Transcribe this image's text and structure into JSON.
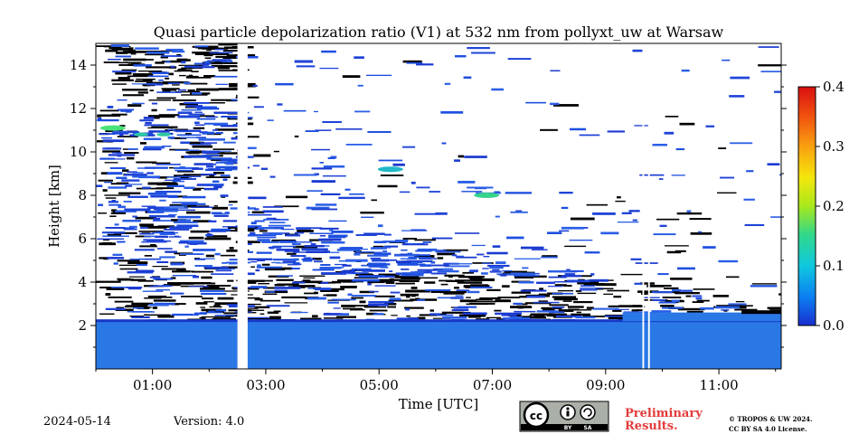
{
  "chart_data": {
    "type": "heatmap",
    "title": "Quasi particle depolarization ratio (V1) at 532 nm from pollyxt_uw at Warsaw",
    "xlabel": "Time [UTC]",
    "ylabel": "Height [km]",
    "x_range_hours": [
      0,
      12.1
    ],
    "ylim": [
      0,
      15
    ],
    "x_ticks": [
      {
        "hour": 1,
        "label": "01:00"
      },
      {
        "hour": 3,
        "label": "03:00"
      },
      {
        "hour": 5,
        "label": "05:00"
      },
      {
        "hour": 7,
        "label": "07:00"
      },
      {
        "hour": 9,
        "label": "09:00"
      },
      {
        "hour": 11,
        "label": "11:00"
      }
    ],
    "y_ticks": [
      2,
      4,
      6,
      8,
      10,
      12,
      14
    ],
    "colorbar": {
      "min": 0.0,
      "max": 0.4,
      "ticks": [
        "0.0",
        "0.1",
        "0.2",
        "0.3",
        "0.4"
      ],
      "colormap": [
        "#1a2fd0",
        "#0b7ff0",
        "#10c8e0",
        "#30d88a",
        "#a8e81c",
        "#f5e60c",
        "#f8a010",
        "#f05010",
        "#d81010"
      ]
    },
    "data_gaps_hours": [
      [
        2.5,
        2.68
      ],
      [
        9.65,
        9.68
      ],
      [
        9.75,
        9.78
      ]
    ],
    "layers": [
      {
        "name_hint": "boundary layer",
        "height_km": [
          0,
          2.2
        ],
        "value": 0.02,
        "color": "#2a78e6"
      },
      {
        "name_hint": "noisy upper region",
        "height_km": [
          2.2,
          15
        ],
        "value": 0.01,
        "color": "#1e44d8"
      }
    ],
    "notable_features": [
      {
        "time_hour": 0.3,
        "height_km": 11.1,
        "value": 0.12,
        "color": "#4ae27a"
      },
      {
        "time_hour": 6.9,
        "height_km": 8.0,
        "value": 0.12,
        "color": "#36d48c"
      },
      {
        "time_hour": 5.2,
        "height_km": 9.2,
        "value": 0.07,
        "color": "#22b8c8"
      }
    ]
  },
  "footer": {
    "date": "2024-05-14",
    "version": "Version: 4.0",
    "prelim_line1": "Preliminary",
    "prelim_line2": "Results.",
    "copyright_line1": "© TROPOS & UW 2024.",
    "copyright_line2": "CC BY SA 4.0 License.",
    "license_badge": {
      "icon": "cc-by-sa-badge",
      "text_by": "BY",
      "text_sa": "SA"
    }
  }
}
